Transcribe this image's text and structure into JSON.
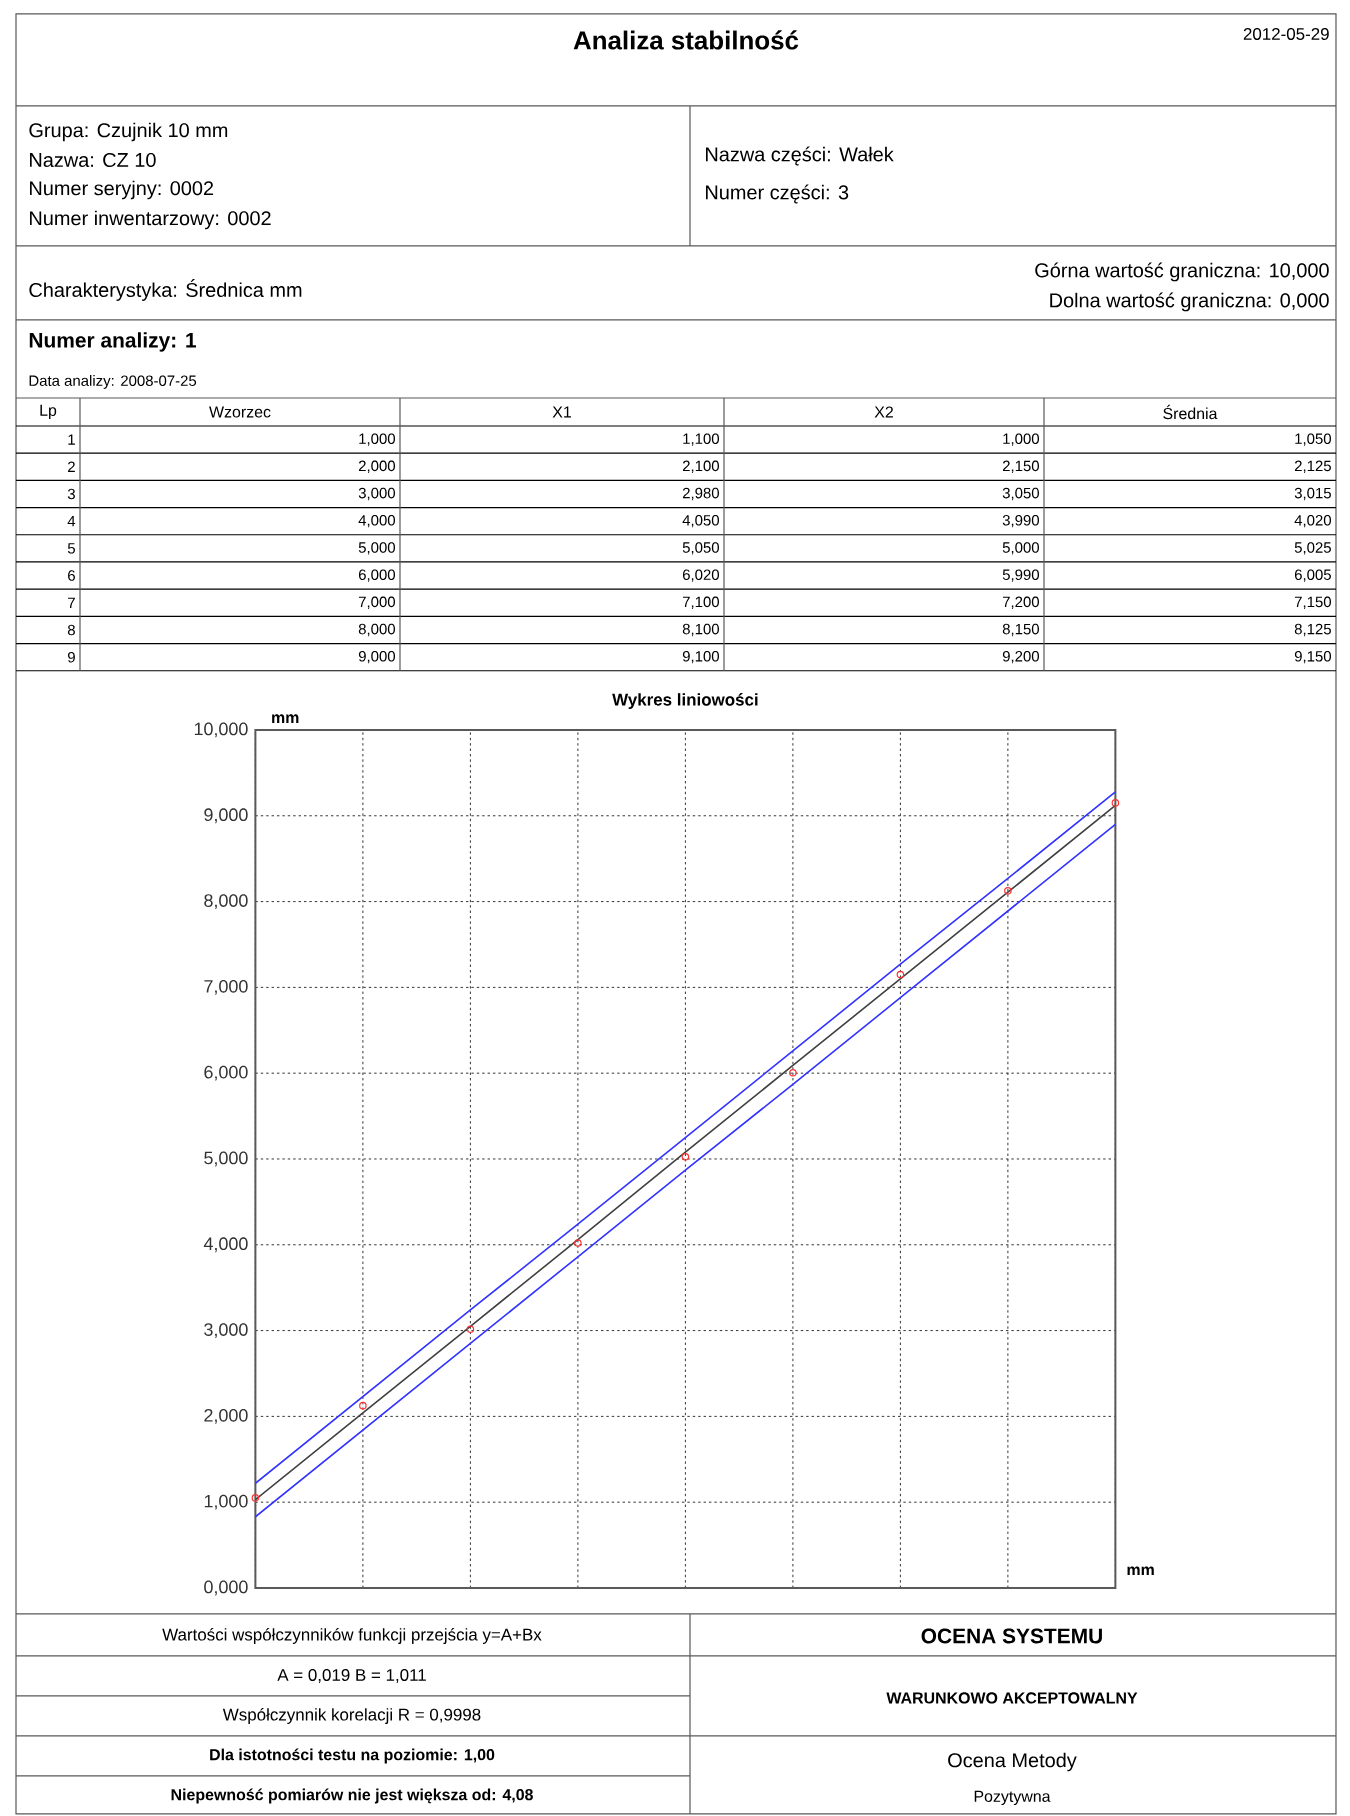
{
  "chart_data": {
    "type": "scatter",
    "title": "Wykres liniowości",
    "xlabel": "mm",
    "ylabel": "mm",
    "categories": [
      null,
      null,
      null,
      null,
      null,
      null,
      null,
      null,
      null
    ],
    "ylim": [
      0,
      10
    ],
    "yticks": [
      {
        "value": 0,
        "label": "0,000"
      },
      {
        "value": 1,
        "label": "1,000"
      },
      {
        "value": 2,
        "label": "2,000"
      },
      {
        "value": 3,
        "label": "3,000"
      },
      {
        "value": 4,
        "label": "4,000"
      },
      {
        "value": 5,
        "label": "5,000"
      },
      {
        "value": 6,
        "label": "6,000"
      },
      {
        "value": 7,
        "label": "7,000"
      },
      {
        "value": 8,
        "label": "8,000"
      },
      {
        "value": 9,
        "label": "9,000"
      },
      {
        "value": 10,
        "label": "10,000"
      }
    ],
    "tick_labels": "y",
    "grid": true,
    "series": [
      {
        "type": "line",
        "color": "#3333ff",
        "values": [
          1.22,
          2.23,
          3.24,
          4.24,
          5.25,
          6.26,
          7.27,
          8.27,
          9.28
        ]
      },
      {
        "type": "line",
        "color": "#3333ff",
        "values": [
          0.83,
          1.84,
          2.85,
          3.86,
          4.87,
          5.87,
          6.88,
          7.89,
          8.9
        ]
      },
      {
        "type": "line",
        "color": "#404040",
        "values": [
          1.03,
          2.04,
          3.05,
          4.06,
          5.08,
          6.09,
          7.1,
          8.11,
          9.12
        ]
      },
      {
        "color": "#ff3030",
        "values": [
          1.05,
          2.125,
          3.015,
          4.02,
          5.025,
          6.005,
          7.15,
          8.125,
          9.15
        ]
      }
    ],
    "annotations": [
      "Analiza stabilność",
      "2012-05-29",
      "Grupa: Czujnik 10 mm",
      "Nazwa: CZ 10",
      "Numer seryjny: 0002",
      "Numer inwentarzowy: 0002",
      "Nazwa części: Wałek",
      "Numer części: 3",
      "Charakterystyka: Średnica   mm",
      "Górna wartość graniczna: 10,000",
      "Dolna wartość graniczna: 0,000",
      "Numer analizy: 1",
      "Data analizy: 2008-07-25",
      "Lp",
      "Wzorzec",
      "X1",
      "X2",
      "Średnia",
      "1",
      "1,000",
      "1,100",
      "1,000",
      "1,050",
      "2",
      "2,000",
      "2,100",
      "2,150",
      "2,125",
      "3",
      "3,000",
      "2,980",
      "3,050",
      "3,015",
      "4",
      "4,000",
      "4,050",
      "3,990",
      "4,020",
      "5",
      "5,000",
      "5,050",
      "5,000",
      "5,025",
      "6",
      "6,000",
      "6,020",
      "5,990",
      "6,005",
      "7",
      "7,000",
      "7,100",
      "7,200",
      "7,150",
      "8",
      "8,000",
      "8,100",
      "8,150",
      "8,125",
      "9",
      "9,000",
      "9,100",
      "9,200",
      "9,150",
      "Wartości współczynników funkcji przejścia y=A+Bx",
      "A = 0,019     B = 1,011",
      "Współczynnik korelacji R = 0,9998",
      "Dla istotności testu na poziomie: 1,00",
      "Niepewność pomiarów nie jest większa od: 4,08",
      "OCENA SYSTEMU",
      "WARUNKOWO AKCEPTOWALNY",
      "Ocena Metody",
      "Pozytywna"
    ]
  }
}
